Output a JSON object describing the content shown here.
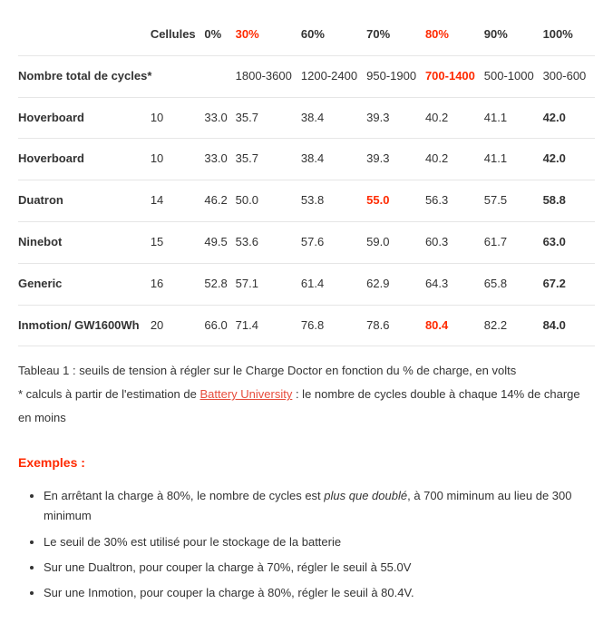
{
  "table": {
    "headers": [
      {
        "text": "Cellules",
        "red": false
      },
      {
        "text": "0%",
        "red": false
      },
      {
        "text": "30%",
        "red": true
      },
      {
        "text": "60%",
        "red": false
      },
      {
        "text": "70%",
        "red": false
      },
      {
        "text": "80%",
        "red": true
      },
      {
        "text": "90%",
        "red": false
      },
      {
        "text": "100%",
        "red": false
      }
    ],
    "cycles_label": "Nombre total de cycles*",
    "cycles": [
      {
        "text": "",
        "red": false,
        "bold": false
      },
      {
        "text": "1800-3600",
        "red": false,
        "bold": false
      },
      {
        "text": "1200-2400",
        "red": false,
        "bold": false
      },
      {
        "text": "950-1900",
        "red": false,
        "bold": false
      },
      {
        "text": "700-1400",
        "red": true,
        "bold": true
      },
      {
        "text": "500-1000",
        "red": false,
        "bold": false
      },
      {
        "text": "300-600",
        "red": false,
        "bold": false
      }
    ],
    "rows": [
      {
        "label": "Hoverboard",
        "cells": [
          {
            "text": "10",
            "red": false,
            "bold": false
          },
          {
            "text": "33.0",
            "red": false,
            "bold": false
          },
          {
            "text": "35.7",
            "red": false,
            "bold": false
          },
          {
            "text": "38.4",
            "red": false,
            "bold": false
          },
          {
            "text": "39.3",
            "red": false,
            "bold": false
          },
          {
            "text": "40.2",
            "red": false,
            "bold": false
          },
          {
            "text": "41.1",
            "red": false,
            "bold": false
          },
          {
            "text": "42.0",
            "red": false,
            "bold": true
          }
        ]
      },
      {
        "label": "Hoverboard",
        "cells": [
          {
            "text": "10",
            "red": false,
            "bold": false
          },
          {
            "text": "33.0",
            "red": false,
            "bold": false
          },
          {
            "text": "35.7",
            "red": false,
            "bold": false
          },
          {
            "text": "38.4",
            "red": false,
            "bold": false
          },
          {
            "text": "39.3",
            "red": false,
            "bold": false
          },
          {
            "text": "40.2",
            "red": false,
            "bold": false
          },
          {
            "text": "41.1",
            "red": false,
            "bold": false
          },
          {
            "text": "42.0",
            "red": false,
            "bold": true
          }
        ]
      },
      {
        "label": "Duatron",
        "cells": [
          {
            "text": "14",
            "red": false,
            "bold": false
          },
          {
            "text": "46.2",
            "red": false,
            "bold": false
          },
          {
            "text": "50.0",
            "red": false,
            "bold": false
          },
          {
            "text": "53.8",
            "red": false,
            "bold": false
          },
          {
            "text": "55.0",
            "red": true,
            "bold": true
          },
          {
            "text": "56.3",
            "red": false,
            "bold": false
          },
          {
            "text": "57.5",
            "red": false,
            "bold": false
          },
          {
            "text": "58.8",
            "red": false,
            "bold": true
          }
        ]
      },
      {
        "label": "Ninebot",
        "cells": [
          {
            "text": "15",
            "red": false,
            "bold": false
          },
          {
            "text": "49.5",
            "red": false,
            "bold": false
          },
          {
            "text": "53.6",
            "red": false,
            "bold": false
          },
          {
            "text": "57.6",
            "red": false,
            "bold": false
          },
          {
            "text": "59.0",
            "red": false,
            "bold": false
          },
          {
            "text": "60.3",
            "red": false,
            "bold": false
          },
          {
            "text": "61.7",
            "red": false,
            "bold": false
          },
          {
            "text": "63.0",
            "red": false,
            "bold": true
          }
        ]
      },
      {
        "label": "Generic",
        "cells": [
          {
            "text": "16",
            "red": false,
            "bold": false
          },
          {
            "text": "52.8",
            "red": false,
            "bold": false
          },
          {
            "text": "57.1",
            "red": false,
            "bold": false
          },
          {
            "text": "61.4",
            "red": false,
            "bold": false
          },
          {
            "text": "62.9",
            "red": false,
            "bold": false
          },
          {
            "text": "64.3",
            "red": false,
            "bold": false
          },
          {
            "text": "65.8",
            "red": false,
            "bold": false
          },
          {
            "text": "67.2",
            "red": false,
            "bold": true
          }
        ]
      },
      {
        "label": "Inmotion/ GW1600Wh",
        "cells": [
          {
            "text": "20",
            "red": false,
            "bold": false
          },
          {
            "text": "66.0",
            "red": false,
            "bold": false
          },
          {
            "text": "71.4",
            "red": false,
            "bold": false
          },
          {
            "text": "76.8",
            "red": false,
            "bold": false
          },
          {
            "text": "78.6",
            "red": false,
            "bold": false
          },
          {
            "text": "80.4",
            "red": true,
            "bold": true
          },
          {
            "text": "82.2",
            "red": false,
            "bold": false
          },
          {
            "text": "84.0",
            "red": false,
            "bold": true
          }
        ]
      }
    ]
  },
  "caption": {
    "line1": "Tableau 1 : seuils de tension à régler sur le Charge Doctor en fonction du % de charge, en volts",
    "line2_prefix": "* calculs à partir de l'estimation de ",
    "line2_link": "Battery University",
    "line2_suffix": " : le nombre de cycles double à chaque 14% de charge en moins"
  },
  "examples": {
    "title": "Exemples :",
    "items": [
      {
        "prefix": "En arrêtant la charge à 80%, le nombre de cycles est ",
        "em": "plus que doublé",
        "suffix": ", à 700 miminum au lieu de 300 minimum"
      },
      {
        "prefix": "Le seuil de 30% est utilisé pour le stockage de la batterie",
        "em": "",
        "suffix": ""
      },
      {
        "prefix": "Sur une Dualtron, pour couper la charge à 70%, régler le seuil à 55.0V",
        "em": "",
        "suffix": ""
      },
      {
        "prefix": "Sur une Inmotion, pour couper la charge à 80%, régler le seuil à 80.4V.",
        "em": "",
        "suffix": ""
      }
    ]
  },
  "colors": {
    "text": "#333333",
    "accent_red": "#ff2a00",
    "link_red": "#e74c3c",
    "border": "#e6e6e6",
    "background": "#ffffff"
  }
}
